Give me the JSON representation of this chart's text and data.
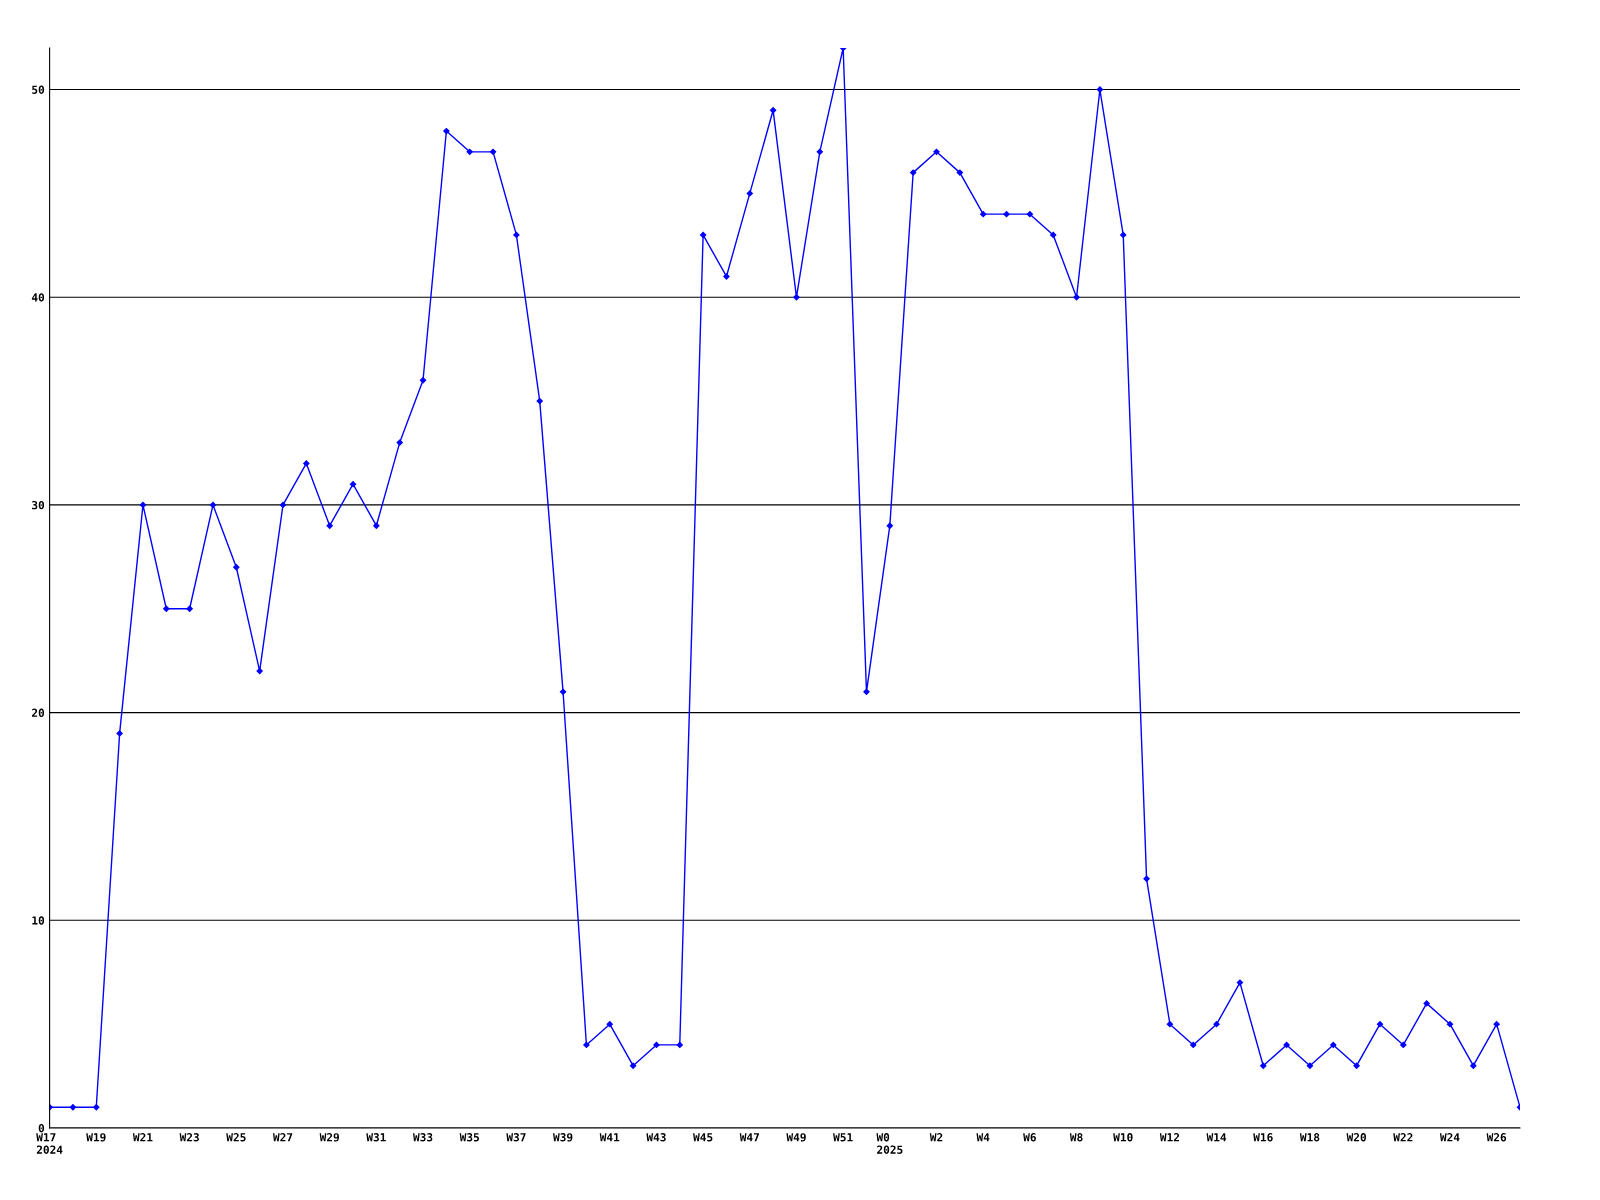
{
  "chart_data": {
    "type": "line",
    "categories": [
      "W17\n2024",
      null,
      "W19",
      null,
      "W21",
      null,
      "W23",
      null,
      "W25",
      null,
      "W27",
      null,
      "W29",
      null,
      "W31",
      null,
      "W33",
      null,
      "W35",
      null,
      "W37",
      null,
      "W39",
      null,
      "W41",
      null,
      "W43",
      null,
      "W45",
      null,
      "W47",
      null,
      "W49",
      null,
      "W51",
      null,
      "W0\n2025",
      null,
      "W2",
      null,
      "W4",
      null,
      "W6",
      null,
      "W8",
      null,
      "W10",
      null,
      "W12",
      null,
      "W14",
      null,
      "W16",
      null,
      "W18",
      null,
      "W20",
      null,
      "W22",
      null,
      "W24",
      null,
      "W26",
      null
    ],
    "series": [
      {
        "color": "#0000ff",
        "values": [
          1,
          1,
          1,
          19,
          30,
          25,
          25,
          30,
          27,
          22,
          30,
          32,
          29,
          31,
          29,
          33,
          36,
          48,
          47,
          47,
          43,
          35,
          21,
          4,
          5,
          3,
          4,
          4,
          43,
          41,
          45,
          49,
          40,
          47,
          52,
          21,
          29,
          46,
          47,
          46,
          44,
          44,
          44,
          43,
          40,
          50,
          43,
          12,
          5,
          4,
          5,
          7,
          3,
          4,
          3,
          4,
          3,
          5,
          4,
          6,
          5,
          3,
          5,
          1
        ]
      }
    ],
    "ylim": [
      0,
      52
    ],
    "yticks": [
      0,
      10,
      20,
      30,
      40,
      50
    ],
    "grid": "y",
    "marker": "diamond",
    "line_style": "solid"
  }
}
